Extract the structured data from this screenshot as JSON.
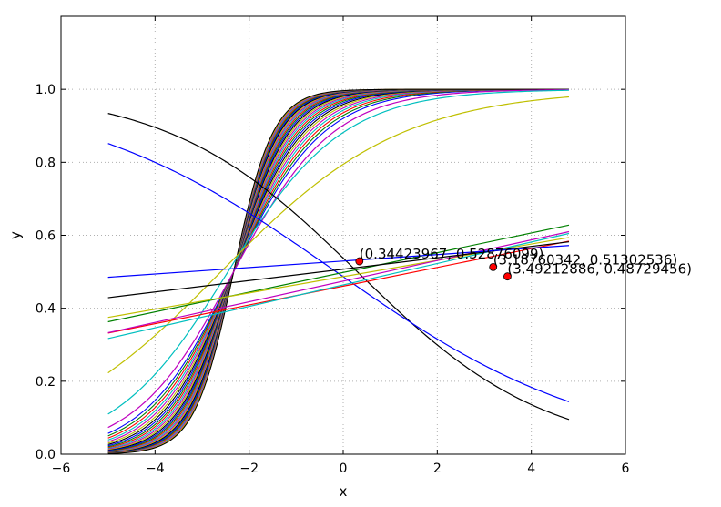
{
  "chart_data": {
    "type": "line",
    "title": "",
    "xlabel": "x",
    "ylabel": "y",
    "xlim": [
      -6,
      6
    ],
    "ylim": [
      0.0,
      1.2
    ],
    "xticks": [
      -6,
      -4,
      -2,
      0,
      2,
      4,
      6
    ],
    "xtick_labels": [
      "−6",
      "−4",
      "−2",
      "0",
      "2",
      "4",
      "6"
    ],
    "yticks": [
      0.0,
      0.2,
      0.4,
      0.6,
      0.8,
      1.0
    ],
    "ytick_labels": [
      "0.0",
      "0.2",
      "0.4",
      "0.6",
      "0.8",
      "1.0"
    ],
    "grid": true,
    "x_range": [
      -5.0,
      4.8
    ],
    "colors": [
      "#0000ff",
      "#008000",
      "#ff0000",
      "#00bfbf",
      "#bf00bf",
      "#bfbf00",
      "#000000"
    ],
    "steep_sigmoids": {
      "k_values": [
        1.05,
        1.1,
        1.15,
        1.2,
        1.25,
        1.3,
        1.35,
        1.4,
        1.45,
        1.5,
        1.55,
        1.6,
        1.65,
        1.7,
        1.75,
        1.8,
        1.85,
        1.9,
        1.95,
        2.0,
        2.05,
        2.1,
        2.15,
        2.2,
        2.25,
        2.3,
        2.35,
        2.4
      ],
      "center": -2.33
    },
    "series": [
      {
        "color": "#bf00bf",
        "shape": "sigmoid",
        "k": 0.95,
        "center": -2.33
      },
      {
        "color": "#00bfbf",
        "shape": "sigmoid",
        "k": 0.82,
        "center": -2.45
      },
      {
        "color": "#bfbf00",
        "shape": "sigmoid",
        "k": 0.52,
        "center": -2.6
      },
      {
        "color": "#000000",
        "shape": "sigmoid",
        "k": -0.5,
        "center": 0.3
      },
      {
        "color": "#0000ff",
        "shape": "sigmoid",
        "k": -0.36,
        "center": -0.15
      },
      {
        "color": "#008000",
        "shape": "line",
        "y_start": 0.363,
        "y_end": 0.628
      },
      {
        "color": "#bfbf00",
        "shape": "line",
        "y_start": 0.375,
        "y_end": 0.594
      },
      {
        "color": "#ff0000",
        "shape": "line",
        "y_start": 0.332,
        "y_end": 0.584
      },
      {
        "color": "#bf00bf",
        "shape": "line",
        "y_start": 0.333,
        "y_end": 0.61
      },
      {
        "color": "#00bfbf",
        "shape": "line",
        "y_start": 0.317,
        "y_end": 0.605
      },
      {
        "color": "#000000",
        "shape": "line",
        "y_start": 0.429,
        "y_end": 0.582
      },
      {
        "color": "#0000ff",
        "shape": "line",
        "y_start": 0.485,
        "y_end": 0.572
      }
    ],
    "points": [
      {
        "x": 0.34423967,
        "y": 0.52876099,
        "label": "(0.34423967, 0.52876099)"
      },
      {
        "x": 3.18760342,
        "y": 0.51302536,
        "label": "(3.18760342, 0.51302536)"
      },
      {
        "x": 3.49212886,
        "y": 0.48729456,
        "label": "(3.49212886, 0.48729456)"
      }
    ]
  }
}
